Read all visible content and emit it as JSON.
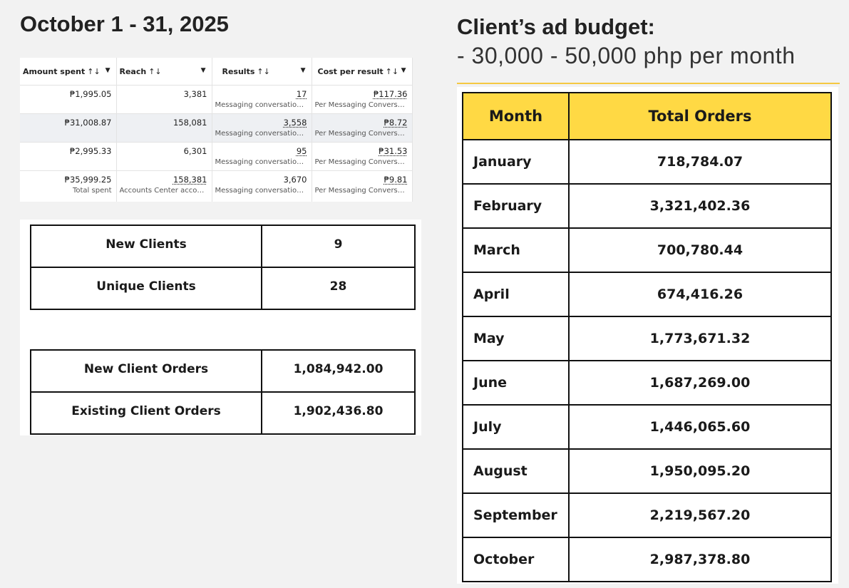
{
  "left_title": "October 1 - 31, 2025",
  "right_title": "Client’s ad budget:",
  "right_subtitle": "- 30,000 - 50,000 php per month",
  "ads_table": {
    "headers": [
      "Amount spent",
      "Reach",
      "Results",
      "Cost per result"
    ],
    "sort_glyph": "↑↓",
    "caret_glyph": "▼",
    "rows": [
      {
        "amount": "₱1,995.05",
        "reach": "3,381",
        "results": "17",
        "results_sub": "Messaging conversation...",
        "cost": "₱117.36",
        "cost_sub": "Per Messaging Conversa..."
      },
      {
        "amount": "₱31,008.87",
        "reach": "158,081",
        "results": "3,558",
        "results_sub": "Messaging conversation...",
        "cost": "₱8.72",
        "cost_sub": "Per Messaging Conversa..."
      },
      {
        "amount": "₱2,995.33",
        "reach": "6,301",
        "results": "95",
        "results_sub": "Messaging conversation...",
        "cost": "₱31.53",
        "cost_sub": "Per Messaging Conversa..."
      }
    ],
    "total": {
      "amount": "₱35,999.25",
      "amount_sub": "Total spent",
      "reach": "158,381",
      "reach_sub": "Accounts Center accou...",
      "results": "3,670",
      "results_sub": "Messaging conversation...",
      "cost": "₱9.81",
      "cost_sub": "Per Messaging Conversa..."
    }
  },
  "clients_table": [
    {
      "label": "New Clients",
      "value": "9"
    },
    {
      "label": "Unique Clients",
      "value": "28"
    }
  ],
  "client_orders_table": [
    {
      "label": "New Client Orders",
      "value": "1,084,942.00"
    },
    {
      "label": "Existing Client Orders",
      "value": "1,902,436.80"
    }
  ],
  "orders_table": {
    "headers": [
      "Month",
      "Total Orders"
    ],
    "header_color": "#ffd944",
    "rows": [
      {
        "month": "January",
        "total": "718,784.07"
      },
      {
        "month": "February",
        "total": "3,321,402.36"
      },
      {
        "month": "March",
        "total": "700,780.44"
      },
      {
        "month": "April",
        "total": "674,416.26"
      },
      {
        "month": "May",
        "total": "1,773,671.32"
      },
      {
        "month": "June",
        "total": "1,687,269.00"
      },
      {
        "month": "July",
        "total": "1,446,065.60"
      },
      {
        "month": "August",
        "total": "1,950,095.20"
      },
      {
        "month": "September",
        "total": "2,219,567.20"
      },
      {
        "month": "October",
        "total": "2,987,378.80"
      }
    ]
  }
}
